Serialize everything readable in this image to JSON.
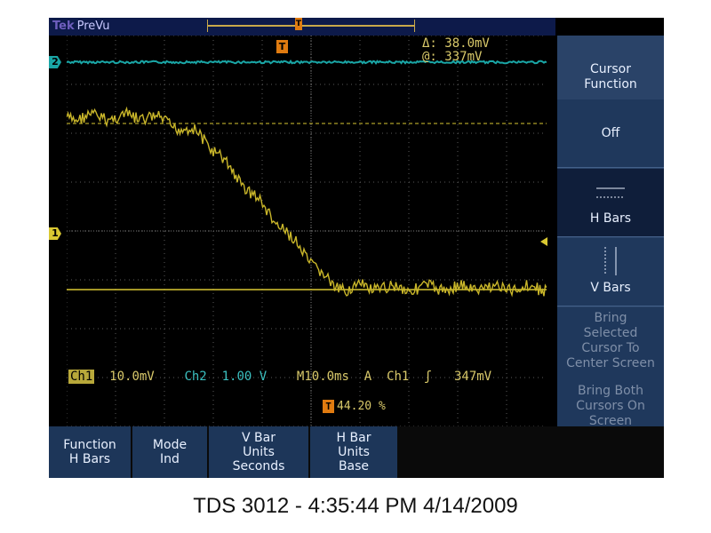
{
  "topbar": {
    "brand": "PreVu"
  },
  "cursor_readout": {
    "delta": "Δ:  38.0mV",
    "at": "@:   337mV"
  },
  "channel_markers": {
    "ch1": "1",
    "ch2": "2"
  },
  "trigger_icon": "T",
  "status": {
    "ch1_label": "Ch1",
    "ch1_scale": "10.0mV",
    "ch2_label": "Ch2",
    "ch2_scale": "1.00 V",
    "timebase": "M10.0ms",
    "trigger_mode": "A",
    "trigger_source": "Ch1",
    "trigger_slope_icon": "rising-edge-icon",
    "trigger_slope": "ʃ",
    "trigger_level": "347mV",
    "trigger_position": "44.20 %"
  },
  "side_menu": {
    "title": [
      "Cursor",
      "Function"
    ],
    "off": "Off",
    "h_bars": "H Bars",
    "v_bars": "V Bars",
    "bring_selected": [
      "Bring",
      "Selected",
      "Cursor To",
      "Center Screen"
    ],
    "bring_both": [
      "Bring Both",
      "Cursors On",
      "Screen"
    ]
  },
  "bottom_menu": [
    {
      "line1": "Function",
      "line2": "H Bars",
      "line3": ""
    },
    {
      "line1": "Mode",
      "line2": "Ind",
      "line3": ""
    },
    {
      "line1": "V Bar",
      "line2": "Units",
      "line3": "Seconds"
    },
    {
      "line1": "H Bar",
      "line2": "Units",
      "line3": "Base"
    }
  ],
  "footer": "TDS 3012 - 4:35:44 PM   4/14/2009",
  "colors": {
    "ch1": "#d9c832",
    "ch2": "#1aa6a6",
    "menu": "#2a4368",
    "trigger": "#e07b10"
  }
}
